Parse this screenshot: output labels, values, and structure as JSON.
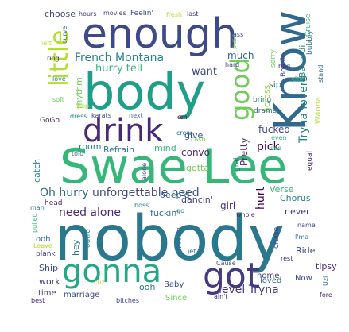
{
  "words": [
    {
      "text": "nobody",
      "color": "#2a788e"
    },
    {
      "text": "Swae Lee",
      "color": "#35b779"
    },
    {
      "text": "body",
      "color": "#1f9e89"
    },
    {
      "text": "enough",
      "color": "#3e4989"
    },
    {
      "text": "Know",
      "color": "#31688e"
    },
    {
      "text": "drink",
      "color": "#482878"
    },
    {
      "text": "gonna",
      "color": "#22a884"
    },
    {
      "text": "got",
      "color": "#443983"
    },
    {
      "text": "good",
      "color": "#6ece58"
    },
    {
      "text": "little",
      "color": "#b5de2b"
    },
    {
      "text": "French Montana",
      "color": "#26828e"
    },
    {
      "text": "unforgettable need",
      "color": "#3e4989"
    },
    {
      "text": "Oh hurry",
      "color": "#31688e"
    },
    {
      "text": "need alone",
      "color": "#482878"
    },
    {
      "text": "hurry tell",
      "color": "#35b779"
    },
    {
      "text": "want",
      "color": "#3e4989"
    },
    {
      "text": "Tryna lovers",
      "color": "#26828e"
    },
    {
      "text": "level Tryna",
      "color": "#443983"
    },
    {
      "text": "pick",
      "color": "#440154"
    },
    {
      "text": "convo",
      "color": "#472d7b"
    },
    {
      "text": "fucked",
      "color": "#414487"
    },
    {
      "text": "Pretty",
      "color": "#482878"
    },
    {
      "text": "much",
      "color": "#31688e"
    },
    {
      "text": "Refrain",
      "color": "#2a788e"
    },
    {
      "text": "mind",
      "color": "#35b779"
    },
    {
      "text": "room",
      "color": "#26828e"
    },
    {
      "text": "gotta",
      "color": "#6ece58"
    },
    {
      "text": "give",
      "color": "#3e4989"
    },
    {
      "text": "across",
      "color": "#90d743"
    },
    {
      "text": "rhythm",
      "color": "#6ece58"
    },
    {
      "text": "choose",
      "color": "#3e4989"
    },
    {
      "text": "hours",
      "color": "#443983"
    },
    {
      "text": "movies",
      "color": "#443983"
    },
    {
      "text": "Feelin'",
      "color": "#3e4989"
    },
    {
      "text": "fresh",
      "color": "#b5de2b"
    },
    {
      "text": "last",
      "color": "#472d7b"
    },
    {
      "text": "curve",
      "color": "#31688e"
    },
    {
      "text": "left",
      "color": "#b5de2b"
    },
    {
      "text": "ring",
      "color": "#482878"
    },
    {
      "text": "love",
      "color": "#2a788e"
    },
    {
      "text": "soft",
      "color": "#6ece58"
    },
    {
      "text": "GoGo",
      "color": "#482878"
    },
    {
      "text": "dress",
      "color": "#26828e"
    },
    {
      "text": "karats",
      "color": "#3e4989"
    },
    {
      "text": "next",
      "color": "#31688e"
    },
    {
      "text": "em",
      "color": "#440154"
    },
    {
      "text": "crew",
      "color": "#26828e"
    },
    {
      "text": "pop",
      "color": "#b5de2b"
    },
    {
      "text": "catch",
      "color": "#26828e"
    },
    {
      "text": "told",
      "color": "#31688e"
    },
    {
      "text": "push",
      "color": "#6ece58"
    },
    {
      "text": "sorry",
      "color": "#6ece58"
    },
    {
      "text": "sip",
      "color": "#2a788e"
    },
    {
      "text": "shit",
      "color": "#35b779"
    },
    {
      "text": "bring",
      "color": "#2a788e"
    },
    {
      "text": "drama",
      "color": "#31688e"
    },
    {
      "text": "Boosie",
      "color": "#3e4989"
    },
    {
      "text": "bad",
      "color": "#482878"
    },
    {
      "text": "Bacardi",
      "color": "#26828e"
    },
    {
      "text": "bubbly",
      "color": "#31688e"
    },
    {
      "text": "Wanna",
      "color": "#b5de2b"
    },
    {
      "text": "stand",
      "color": "#31688e"
    },
    {
      "text": "Cruise",
      "color": "#35b779"
    },
    {
      "text": "ass",
      "color": "#3e4989"
    },
    {
      "text": "hard",
      "color": "#3e4989"
    },
    {
      "text": "cash",
      "color": "#6ece58"
    },
    {
      "text": "dancin'",
      "color": "#443983"
    },
    {
      "text": "peep'd",
      "color": "#31688e"
    },
    {
      "text": "fuckin'",
      "color": "#31688e"
    },
    {
      "text": "go",
      "color": "#26828e"
    },
    {
      "text": "girl",
      "color": "#472d7b"
    },
    {
      "text": "hurt",
      "color": "#440154"
    },
    {
      "text": "Verse",
      "color": "#35b779"
    },
    {
      "text": "Chorus",
      "color": "#26828e"
    },
    {
      "text": "never",
      "color": "#443983"
    },
    {
      "text": "even",
      "color": "#35b779"
    },
    {
      "text": "see",
      "color": "#35b779"
    },
    {
      "text": "equal",
      "color": "#482878"
    },
    {
      "text": "grab",
      "color": "#31688e"
    },
    {
      "text": "alone",
      "color": "#443983"
    },
    {
      "text": "boss",
      "color": "#26828e"
    },
    {
      "text": "head",
      "color": "#482878"
    },
    {
      "text": "man",
      "color": "#2a788e"
    },
    {
      "text": "pulled",
      "color": "#35b779"
    },
    {
      "text": "whole",
      "color": "#482878"
    },
    {
      "text": "ooh",
      "color": "#31688e"
    },
    {
      "text": "Leave",
      "color": "#b5de2b"
    },
    {
      "text": "plank",
      "color": "#443983"
    },
    {
      "text": "hey",
      "color": "#2a788e"
    },
    {
      "text": "outro",
      "color": "#26828e"
    },
    {
      "text": "Doin'",
      "color": "#31688e"
    },
    {
      "text": "million",
      "color": "#31688e"
    },
    {
      "text": "jet",
      "color": "#31688e"
    },
    {
      "text": "Cause",
      "color": "#3e4989"
    },
    {
      "text": "cruise",
      "color": "#443983"
    },
    {
      "text": "name",
      "color": "#3e4989"
    },
    {
      "text": "I'ma",
      "color": "#2a788e"
    },
    {
      "text": "rest",
      "color": "#482878"
    },
    {
      "text": "Ride",
      "color": "#3e4989"
    },
    {
      "text": "tipsy",
      "color": "#482878"
    },
    {
      "text": "Ship",
      "color": "#3e4989"
    },
    {
      "text": "work",
      "color": "#443983"
    },
    {
      "text": "cuz",
      "color": "#b5de2b"
    },
    {
      "text": "ooh",
      "color": "#2a788e"
    },
    {
      "text": "Baby",
      "color": "#3e4989"
    },
    {
      "text": "home",
      "color": "#443983"
    },
    {
      "text": "loved",
      "color": "#31688e"
    },
    {
      "text": "Now",
      "color": "#3e4989"
    },
    {
      "text": "Uzi",
      "color": "#31688e"
    },
    {
      "text": "time",
      "color": "#443983"
    },
    {
      "text": "marriage",
      "color": "#3e4989"
    },
    {
      "text": "Since",
      "color": "#6ece58"
    },
    {
      "text": "bitches",
      "color": "#3e4989"
    },
    {
      "text": "ain't",
      "color": "#482878"
    },
    {
      "text": "best",
      "color": "#482878"
    },
    {
      "text": "fore",
      "color": "#482878"
    }
  ]
}
